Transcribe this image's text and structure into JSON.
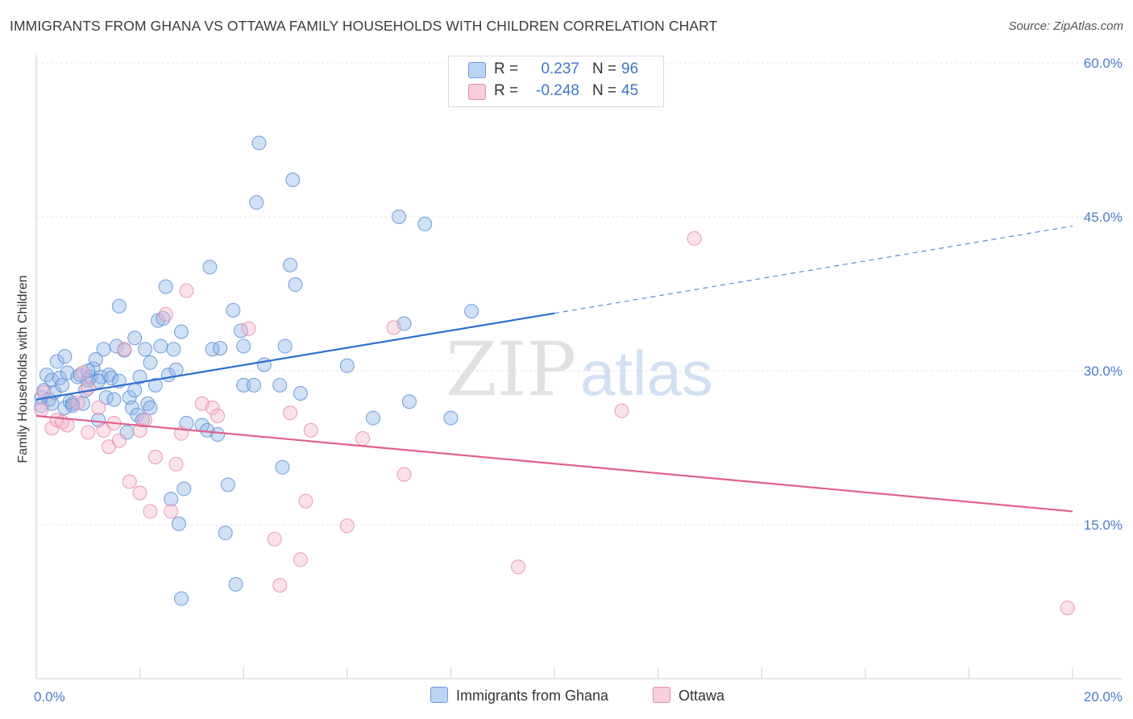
{
  "title": "IMMIGRANTS FROM GHANA VS OTTAWA FAMILY HOUSEHOLDS WITH CHILDREN CORRELATION CHART",
  "source": "Source: ZipAtlas.com",
  "watermark": {
    "zip": "ZIP",
    "atlas": "atlas"
  },
  "legend": {
    "rows": [
      {
        "r_label": "R =",
        "r_value": "0.237",
        "n_label": "N =",
        "n_value": "96"
      },
      {
        "r_label": "R =",
        "r_value": "-0.248",
        "n_label": "N =",
        "n_value": "45"
      }
    ]
  },
  "chart_data": {
    "type": "scatter",
    "title": "IMMIGRANTS FROM GHANA VS OTTAWA FAMILY HOUSEHOLDS WITH CHILDREN CORRELATION CHART",
    "xlabel": "",
    "ylabel": "Family Households with Children",
    "xlim": [
      0,
      20
    ],
    "ylim": [
      0,
      60
    ],
    "x_tick_labels": [
      "0.0%",
      "20.0%"
    ],
    "y_ticks": [
      15,
      30,
      45,
      60
    ],
    "y_tick_labels": [
      "15.0%",
      "30.0%",
      "45.0%",
      "60.0%"
    ],
    "grid": true,
    "legend_position": "top-center",
    "series": [
      {
        "name": "Immigrants from Ghana",
        "color": "#8fb4e8",
        "edge": "#5b8fd6",
        "line_color": "#2f6fd0",
        "trend": {
          "x0": 0.0,
          "y0": 27.2,
          "x1": 10.0,
          "y1": 35.6,
          "dash_to_x": 20.0,
          "dash_to_y": 44.1
        },
        "points": [
          [
            0.1,
            27.4
          ],
          [
            0.1,
            26.6
          ],
          [
            0.15,
            28.1
          ],
          [
            0.2,
            29.6
          ],
          [
            0.25,
            27.2
          ],
          [
            0.3,
            26.8
          ],
          [
            0.3,
            29.1
          ],
          [
            0.35,
            27.9
          ],
          [
            0.4,
            30.9
          ],
          [
            0.45,
            29.3
          ],
          [
            0.5,
            28.6
          ],
          [
            0.55,
            31.4
          ],
          [
            0.55,
            26.4
          ],
          [
            0.6,
            29.8
          ],
          [
            0.65,
            27.0
          ],
          [
            0.7,
            26.8
          ],
          [
            0.8,
            29.4
          ],
          [
            0.85,
            29.6
          ],
          [
            0.9,
            26.8
          ],
          [
            0.95,
            28.1
          ],
          [
            1.0,
            29.1
          ],
          [
            1.05,
            29.4
          ],
          [
            1.1,
            30.2
          ],
          [
            1.15,
            31.1
          ],
          [
            1.2,
            25.2
          ],
          [
            1.25,
            29.4
          ],
          [
            1.3,
            32.1
          ],
          [
            1.35,
            27.4
          ],
          [
            1.4,
            29.6
          ],
          [
            1.45,
            29.3
          ],
          [
            1.5,
            27.2
          ],
          [
            1.55,
            32.4
          ],
          [
            1.6,
            29.0
          ],
          [
            1.6,
            36.3
          ],
          [
            1.7,
            32.0
          ],
          [
            1.75,
            24.0
          ],
          [
            1.8,
            27.4
          ],
          [
            1.85,
            26.4
          ],
          [
            1.9,
            28.1
          ],
          [
            1.9,
            33.2
          ],
          [
            1.95,
            25.7
          ],
          [
            2.0,
            29.4
          ],
          [
            2.05,
            25.2
          ],
          [
            2.1,
            32.1
          ],
          [
            2.15,
            26.8
          ],
          [
            2.2,
            30.8
          ],
          [
            2.2,
            26.4
          ],
          [
            2.3,
            28.6
          ],
          [
            2.35,
            34.9
          ],
          [
            2.4,
            32.4
          ],
          [
            2.45,
            35.1
          ],
          [
            2.5,
            38.2
          ],
          [
            2.55,
            29.6
          ],
          [
            2.6,
            17.5
          ],
          [
            2.65,
            32.1
          ],
          [
            2.7,
            30.1
          ],
          [
            2.75,
            15.1
          ],
          [
            2.8,
            33.8
          ],
          [
            2.85,
            18.5
          ],
          [
            2.9,
            24.9
          ],
          [
            3.2,
            24.7
          ],
          [
            3.3,
            24.2
          ],
          [
            3.35,
            40.1
          ],
          [
            3.4,
            32.1
          ],
          [
            3.5,
            23.8
          ],
          [
            3.55,
            32.2
          ],
          [
            3.65,
            14.2
          ],
          [
            3.7,
            18.9
          ],
          [
            3.8,
            35.9
          ],
          [
            3.85,
            9.2
          ],
          [
            3.95,
            33.9
          ],
          [
            4.0,
            32.4
          ],
          [
            4.0,
            28.6
          ],
          [
            4.2,
            28.6
          ],
          [
            4.25,
            46.4
          ],
          [
            4.3,
            52.2
          ],
          [
            4.4,
            30.6
          ],
          [
            4.7,
            28.6
          ],
          [
            4.75,
            20.6
          ],
          [
            4.8,
            32.4
          ],
          [
            4.9,
            40.3
          ],
          [
            4.95,
            48.6
          ],
          [
            5.0,
            38.4
          ],
          [
            5.1,
            27.8
          ],
          [
            6.0,
            30.5
          ],
          [
            6.5,
            25.4
          ],
          [
            7.0,
            45.0
          ],
          [
            7.1,
            34.6
          ],
          [
            7.2,
            27.0
          ],
          [
            7.5,
            44.3
          ],
          [
            8.0,
            25.4
          ],
          [
            8.4,
            35.8
          ],
          [
            2.8,
            7.8
          ],
          [
            0.7,
            26.6
          ],
          [
            1.0,
            30.0
          ],
          [
            1.2,
            29.0
          ]
        ]
      },
      {
        "name": "Ottawa",
        "color": "#f5b8cc",
        "edge": "#e88aab",
        "line_color": "#e0608a",
        "trend": {
          "x0": 0.0,
          "y0": 25.6,
          "x1": 20.0,
          "y1": 16.3
        },
        "points": [
          [
            0.1,
            26.2
          ],
          [
            0.15,
            27.9
          ],
          [
            0.3,
            24.4
          ],
          [
            0.4,
            25.2
          ],
          [
            0.6,
            24.7
          ],
          [
            0.8,
            26.9
          ],
          [
            0.9,
            29.8
          ],
          [
            1.0,
            28.3
          ],
          [
            1.2,
            26.4
          ],
          [
            1.3,
            24.2
          ],
          [
            1.4,
            22.6
          ],
          [
            1.5,
            24.9
          ],
          [
            1.6,
            23.2
          ],
          [
            1.7,
            32.1
          ],
          [
            1.8,
            19.2
          ],
          [
            2.0,
            18.1
          ],
          [
            2.1,
            25.2
          ],
          [
            2.2,
            16.3
          ],
          [
            2.3,
            21.6
          ],
          [
            2.5,
            35.5
          ],
          [
            2.6,
            16.3
          ],
          [
            2.7,
            20.9
          ],
          [
            2.8,
            23.9
          ],
          [
            2.9,
            37.8
          ],
          [
            3.2,
            26.8
          ],
          [
            3.4,
            26.4
          ],
          [
            3.5,
            25.6
          ],
          [
            4.1,
            34.1
          ],
          [
            4.6,
            13.6
          ],
          [
            4.7,
            9.1
          ],
          [
            4.9,
            25.9
          ],
          [
            5.1,
            11.6
          ],
          [
            5.2,
            17.3
          ],
          [
            5.3,
            24.2
          ],
          [
            6.0,
            14.9
          ],
          [
            6.3,
            23.4
          ],
          [
            6.9,
            34.2
          ],
          [
            7.1,
            19.9
          ],
          [
            9.3,
            10.9
          ],
          [
            11.3,
            26.1
          ],
          [
            12.7,
            42.9
          ],
          [
            19.9,
            6.9
          ],
          [
            0.5,
            25.0
          ],
          [
            2.0,
            24.2
          ],
          [
            1.0,
            24.0
          ]
        ]
      }
    ]
  }
}
